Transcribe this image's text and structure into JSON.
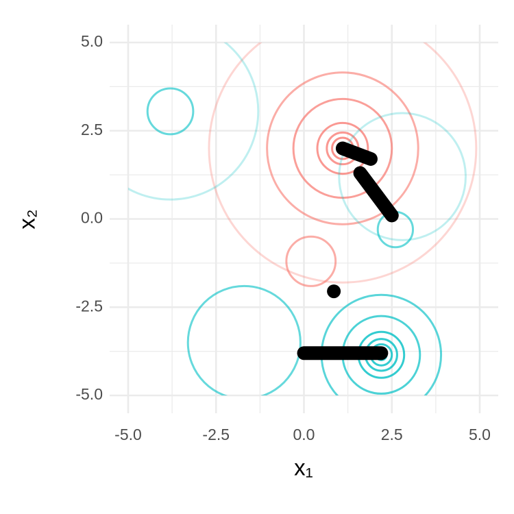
{
  "chart_data": {
    "type": "contour",
    "x_label": "x₁",
    "y_label": "x₂",
    "xlim": [
      -5,
      5
    ],
    "ylim": [
      -5,
      5
    ],
    "xticks": [
      {
        "value": -5,
        "label": "-5.0"
      },
      {
        "value": -2.5,
        "label": "-2.5"
      },
      {
        "value": 0,
        "label": "0.0"
      },
      {
        "value": 2.5,
        "label": "2.5"
      },
      {
        "value": 5,
        "label": "5.0"
      }
    ],
    "yticks": [
      {
        "value": -5,
        "label": "-5.0"
      },
      {
        "value": -2.5,
        "label": "-2.5"
      },
      {
        "value": 0,
        "label": "0.0"
      },
      {
        "value": 2.5,
        "label": "2.5"
      },
      {
        "value": 5,
        "label": "5.0"
      }
    ],
    "minor_ticks": [
      -3.75,
      -1.25,
      1.25,
      3.75
    ],
    "grid": true,
    "series": [
      {
        "color": "#F8766D",
        "x": [
          1.1,
          1.1,
          1.1,
          1.1,
          1.1,
          1.1,
          1.1,
          0.2
        ],
        "y": [
          2.0,
          2.0,
          2.0,
          2.0,
          2.0,
          2.0,
          2.0,
          -1.2
        ],
        "r": [
          0.15,
          0.3,
          0.45,
          0.72,
          1.4,
          2.15,
          3.8,
          0.7
        ],
        "opacity": [
          0.8,
          0.8,
          0.75,
          0.75,
          0.7,
          0.6,
          0.3,
          0.6
        ]
      },
      {
        "color": "#00BFC4",
        "x": [
          2.2,
          2.2,
          2.2,
          2.2,
          2.2,
          2.2,
          -3.8,
          -1.7,
          -3.8,
          2.8,
          2.6
        ],
        "y": [
          -3.85,
          -3.85,
          -3.85,
          -3.85,
          -3.85,
          -3.85,
          3.05,
          -3.5,
          3.05,
          1.2,
          -0.3
        ],
        "r": [
          0.15,
          0.3,
          0.45,
          0.65,
          1.1,
          1.7,
          0.65,
          1.6,
          2.5,
          1.8,
          0.5
        ],
        "opacity": [
          0.8,
          0.8,
          0.8,
          0.8,
          0.7,
          0.65,
          0.6,
          0.6,
          0.25,
          0.25,
          0.6
        ]
      }
    ],
    "paths": [
      {
        "x": [
          1.1,
          1.9
        ],
        "y": [
          2.0,
          1.7
        ]
      },
      {
        "x": [
          1.6,
          2.5
        ],
        "y": [
          1.3,
          0.1
        ]
      },
      {
        "x": [
          0.0,
          2.2
        ],
        "y": [
          -3.8,
          -3.8
        ]
      }
    ],
    "points": {
      "x": [
        0.85
      ],
      "y": [
        -2.05
      ]
    },
    "path_color": "#000000"
  }
}
